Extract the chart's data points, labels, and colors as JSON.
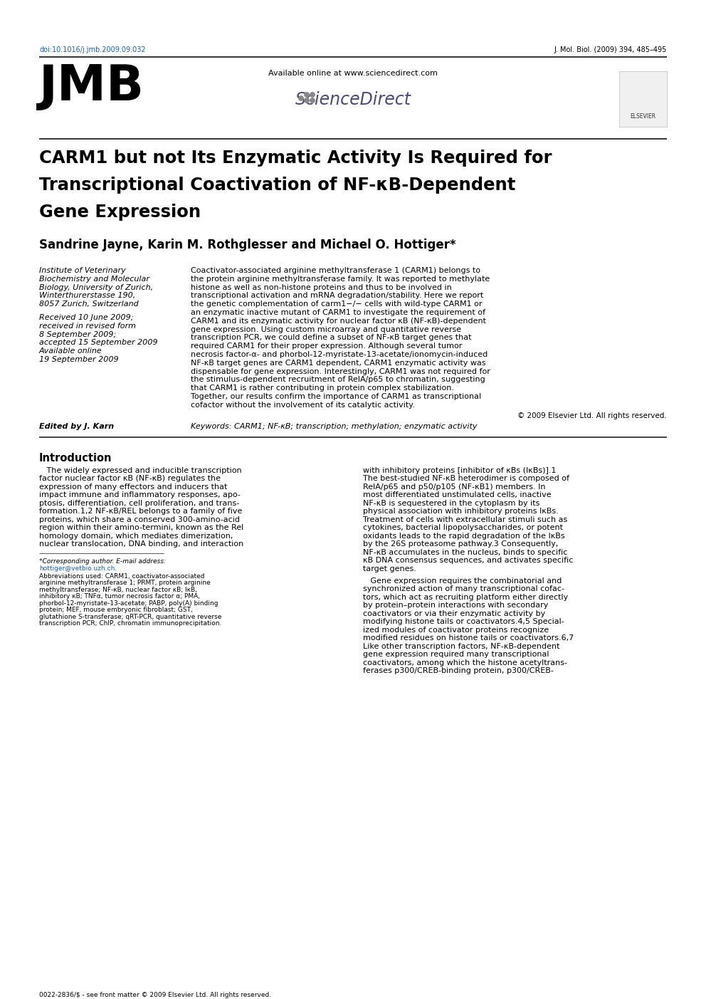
{
  "doi": "doi:10.1016/j.jmb.2009.09.032",
  "journal_ref": "J. Mol. Biol. (2009) 394, 485–495",
  "available_online": "Available online at www.sciencedirect.com",
  "sciencedirect": "ScienceDirect",
  "title_line1": "CARM1 but not Its Enzymatic Activity Is Required for",
  "title_line2": "Transcriptional Coactivation of NF-κB-Dependent",
  "title_line3": "Gene Expression",
  "authors": "Sandrine Jayne, Karin M. Rothglesser and Michael O. Hottiger*",
  "left_col_affil": [
    "Institute of Veterinary",
    "Biochemistry and Molecular",
    "Biology, University of Zurich,",
    "Winterthurerstasse 190,",
    "8057 Zurich, Switzerland"
  ],
  "left_col_dates": [
    "Received 10 June 2009;",
    "received in revised form",
    "8 September 2009;",
    "accepted 15 September 2009",
    "Available online",
    "19 September 2009"
  ],
  "abstract_lines": [
    "Coactivator-associated arginine methyltransferase 1 (CARM1) belongs to",
    "the protein arginine methyltransferase family. It was reported to methylate",
    "histone as well as non-histone proteins and thus to be involved in",
    "transcriptional activation and mRNA degradation/stability. Here we report",
    "the genetic complementation of carm1−/− cells with wild-type CARM1 or",
    "an enzymatic inactive mutant of CARM1 to investigate the requirement of",
    "CARM1 and its enzymatic activity for nuclear factor κB (NF-κB)-dependent",
    "gene expression. Using custom microarray and quantitative reverse",
    "transcription PCR, we could define a subset of NF-κB target genes that",
    "required CARM1 for their proper expression. Although several tumor",
    "necrosis factor-α- and phorbol-12-myristate-13-acetate/ionomycin-induced",
    "NF-κB target genes are CARM1 dependent, CARM1 enzymatic activity was",
    "dispensable for gene expression. Interestingly, CARM1 was not required for",
    "the stimulus-dependent recruitment of RelA/p65 to chromatin, suggesting",
    "that CARM1 is rather contributing in protein complex stabilization.",
    "Together, our results confirm the importance of CARM1 as transcriptional",
    "cofactor without the involvement of its catalytic activity."
  ],
  "copyright": "© 2009 Elsevier Ltd. All rights reserved.",
  "edited_by": "Edited by J. Karn",
  "keywords": "Keywords: CARM1; NF-κB; transcription; methylation; enzymatic activity",
  "intro_heading": "Introduction",
  "intro_left_lines": [
    "   The widely expressed and inducible transcription",
    "factor nuclear factor κB (NF-κB) regulates the",
    "expression of many effectors and inducers that",
    "impact immune and inflammatory responses, apo-",
    "ptosis, differentiation, cell proliferation, and trans-",
    "formation.1,2 NF-κB/REL belongs to a family of five",
    "proteins, which share a conserved 300-amino-acid",
    "region within their amino-termini, known as the Rel",
    "homology domain, which mediates dimerization,",
    "nuclear translocation, DNA binding, and interaction"
  ],
  "intro_right_lines": [
    "with inhibitory proteins [inhibitor of κBs (IκBs)].1",
    "The best-studied NF-κB heterodimer is composed of",
    "RelA/p65 and p50/p105 (NF-κB1) members. In",
    "most differentiated unstimulated cells, inactive",
    "NF-κB is sequestered in the cytoplasm by its",
    "physical association with inhibitory proteins IκBs.",
    "Treatment of cells with extracellular stimuli such as",
    "cytokines, bacterial lipopolysaccharides, or potent",
    "oxidants leads to the rapid degradation of the IκBs",
    "by the 26S proteasome pathway.3 Consequently,",
    "NF-κB accumulates in the nucleus, binds to specific",
    "κB DNA consensus sequences, and activates specific",
    "target genes."
  ],
  "intro_right2_lines": [
    "   Gene expression requires the combinatorial and",
    "synchronized action of many transcriptional cofac-",
    "tors, which act as recruiting platform either directly",
    "by protein–protein interactions with secondary",
    "coactivators or via their enzymatic activity by",
    "modifying histone tails or coactivators.4,5 Special-",
    "ized modules of coactivator proteins recognize",
    "modified residues on histone tails or coactivators.6,7",
    "Like other transcription factors, NF-κB-dependent",
    "gene expression required many transcriptional",
    "coactivators, among which the histone acetyltrans-",
    "ferases p300/CREB-binding protein, p300/CREB-"
  ],
  "footnote_star_line": "*Corresponding author. E-mail address:",
  "footnote_email": "hottiger@vetbio.uzh.ch.",
  "footnote_abbrev_lines": [
    "Abbreviations used: CARM1, coactivator-associated",
    "arginine methyltransferase 1; PRMT, protein arginine",
    "methyltransferase; NF-κB, nuclear factor κB; IκB,",
    "inhibitory κB; TNFα, tumor necrosis factor α; PMA,",
    "phorbol-12-myristate-13-acetate; PABP, poly(A) binding",
    "protein; MEF, mouse embryonic fibroblast; GST,",
    "glutathione S-transferase; qRT-PCR, quantitative reverse",
    "transcription PCR; ChIP, chromatin immunoprecipitation."
  ],
  "bottom_line": "0022-2836/$ - see front matter © 2009 Elsevier Ltd. All rights reserved.",
  "bg_color": "#ffffff",
  "text_color": "#000000",
  "link_color": "#1a5eb8"
}
